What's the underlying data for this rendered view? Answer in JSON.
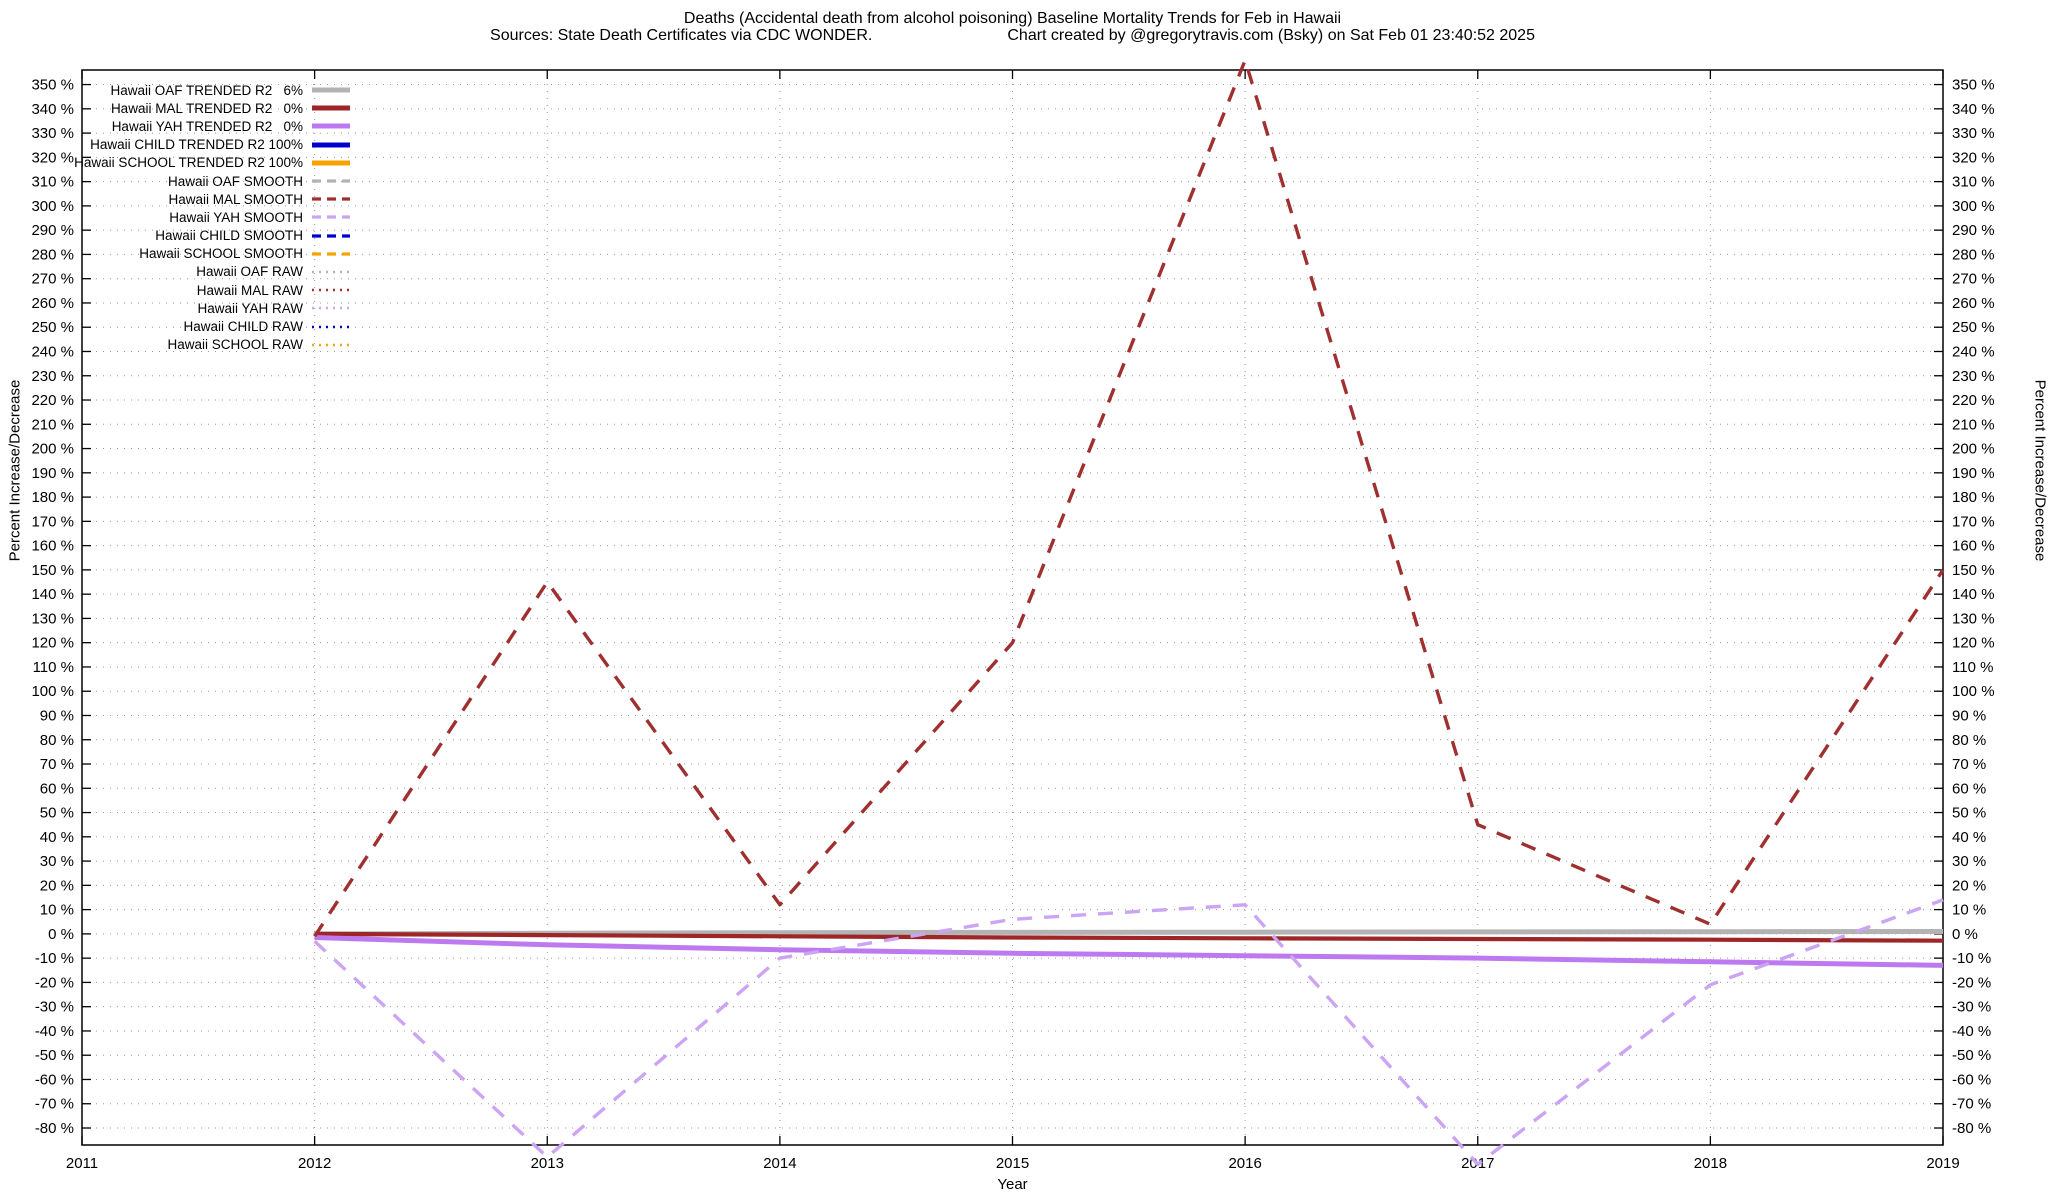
{
  "title": "Deaths (Accidental death from alcohol poisoning)  Baseline Mortality Trends for Feb in Hawaii",
  "subtitle": {
    "sources": "Sources: State Death Certificates via CDC WONDER.",
    "credit": "Chart created by @gregorytravis.com (Bsky) on Sat Feb 01 23:40:52 2025"
  },
  "colors": {
    "gray": "#b3b3b3",
    "darkred_solid": "#9e2626",
    "darkred_dash": "#a03030",
    "purple_solid": "#bd7af0",
    "purple_dash": "#cba4f4",
    "blue": "#0000cd",
    "orange": "#f5a300",
    "grid": "#999999",
    "border": "#000000"
  },
  "legend": [
    {
      "label": "Hawaii OAF TRENDED R2   6%",
      "style": "solid",
      "color": "gray"
    },
    {
      "label": "Hawaii MAL TRENDED R2   0%",
      "style": "solid",
      "color": "darkred_solid"
    },
    {
      "label": "Hawaii YAH TRENDED R2   0%",
      "style": "solid",
      "color": "purple_solid"
    },
    {
      "label": "Hawaii CHILD TRENDED R2 100%",
      "style": "solid",
      "color": "blue"
    },
    {
      "label": "Hawaii SCHOOL TRENDED R2 100%",
      "style": "solid",
      "color": "orange"
    },
    {
      "label": "Hawaii OAF SMOOTH",
      "style": "dashed",
      "color": "gray"
    },
    {
      "label": "Hawaii MAL SMOOTH",
      "style": "dashed",
      "color": "darkred_dash"
    },
    {
      "label": "Hawaii YAH SMOOTH",
      "style": "dashed",
      "color": "purple_dash"
    },
    {
      "label": "Hawaii CHILD SMOOTH",
      "style": "dashed",
      "color": "blue"
    },
    {
      "label": "Hawaii SCHOOL SMOOTH",
      "style": "dashed",
      "color": "orange"
    },
    {
      "label": "Hawaii OAF RAW",
      "style": "dotted",
      "color": "gray"
    },
    {
      "label": "Hawaii MAL RAW",
      "style": "dotted",
      "color": "darkred_dash"
    },
    {
      "label": "Hawaii YAH RAW",
      "style": "dotted",
      "color": "purple_dash"
    },
    {
      "label": "Hawaii CHILD RAW",
      "style": "dotted",
      "color": "blue"
    },
    {
      "label": "Hawaii SCHOOL RAW",
      "style": "dotted",
      "color": "orange"
    }
  ],
  "chart_data": {
    "type": "line",
    "title": "Deaths (Accidental death from alcohol poisoning)  Baseline Mortality Trends for Feb in Hawaii",
    "xlabel": "Year",
    "ylabel_left": "Percent Increase/Decrease",
    "ylabel_right": "Percent Increase/Decrease",
    "x_range": [
      2011,
      2019
    ],
    "x_ticks": [
      2011,
      2012,
      2013,
      2014,
      2015,
      2016,
      2017,
      2018,
      2019
    ],
    "y_axis": {
      "min": -80,
      "max": 350,
      "step": 10,
      "suffix": " %"
    },
    "grid": true,
    "legend_position": "top-left",
    "series": [
      {
        "name": "Hawaii OAF TRENDED R2 6%",
        "id": "oaf-trended",
        "color": "gray",
        "style": "solid",
        "width": 5,
        "x": [
          2012,
          2013,
          2014,
          2015,
          2016,
          2017,
          2018,
          2019
        ],
        "values": [
          0,
          0.3,
          0.5,
          0.6,
          0.7,
          0.8,
          0.9,
          1
        ]
      },
      {
        "name": "Hawaii MAL TRENDED R2 0%",
        "id": "mal-trended",
        "color": "darkred_solid",
        "style": "solid",
        "width": 4.2,
        "x": [
          2012,
          2013,
          2014,
          2015,
          2016,
          2017,
          2018,
          2019
        ],
        "values": [
          0,
          -0.5,
          -1,
          -1.5,
          -1.8,
          -2.1,
          -2.4,
          -2.8
        ]
      },
      {
        "name": "Hawaii YAH TRENDED R2 0%",
        "id": "yah-trended",
        "color": "purple_solid",
        "style": "solid",
        "width": 5,
        "x": [
          2012,
          2013,
          2014,
          2015,
          2016,
          2017,
          2018,
          2019
        ],
        "values": [
          -1.5,
          -4.5,
          -6.5,
          -8,
          -9,
          -10,
          -11.5,
          -13
        ]
      },
      {
        "name": "Hawaii CHILD TRENDED R2 100%",
        "id": "child-trended",
        "color": "blue",
        "style": "solid",
        "width": 4,
        "x": null,
        "values": null
      },
      {
        "name": "Hawaii SCHOOL TRENDED R2 100%",
        "id": "school-trended",
        "color": "orange",
        "style": "solid",
        "width": 4,
        "x": null,
        "values": null
      },
      {
        "name": "Hawaii OAF SMOOTH",
        "id": "oaf-smooth",
        "color": "gray",
        "style": "dashed",
        "width": 3.2,
        "x": null,
        "values": null
      },
      {
        "name": "Hawaii MAL SMOOTH",
        "id": "mal-smooth",
        "color": "darkred_dash",
        "style": "dashed",
        "width": 3.4,
        "x": [
          2012,
          2013,
          2014,
          2015,
          2016,
          2017,
          2018,
          2019
        ],
        "values": [
          -1,
          145,
          12,
          120,
          360,
          45,
          4,
          150
        ]
      },
      {
        "name": "Hawaii YAH SMOOTH",
        "id": "yah-smooth",
        "color": "purple_dash",
        "style": "dashed",
        "width": 3.4,
        "x": [
          2012,
          2013,
          2014,
          2015,
          2016,
          2017,
          2018,
          2019
        ],
        "values": [
          -3,
          -92,
          -10,
          6,
          12,
          -95,
          -21,
          14
        ]
      },
      {
        "name": "Hawaii CHILD SMOOTH",
        "id": "child-smooth",
        "color": "blue",
        "style": "dashed",
        "width": 3.2,
        "x": null,
        "values": null
      },
      {
        "name": "Hawaii SCHOOL SMOOTH",
        "id": "school-smooth",
        "color": "orange",
        "style": "dashed",
        "width": 3.2,
        "x": null,
        "values": null
      },
      {
        "name": "Hawaii OAF RAW",
        "id": "oaf-raw",
        "color": "gray",
        "style": "dotted",
        "width": 2.4,
        "x": null,
        "values": null
      },
      {
        "name": "Hawaii MAL RAW",
        "id": "mal-raw",
        "color": "darkred_dash",
        "style": "dotted",
        "width": 2.4,
        "x": null,
        "values": null
      },
      {
        "name": "Hawaii YAH RAW",
        "id": "yah-raw",
        "color": "purple_dash",
        "style": "dotted",
        "width": 2.4,
        "x": null,
        "values": null
      },
      {
        "name": "Hawaii CHILD RAW",
        "id": "child-raw",
        "color": "blue",
        "style": "dotted",
        "width": 2.4,
        "x": null,
        "values": null
      },
      {
        "name": "Hawaii SCHOOL RAW",
        "id": "school-raw",
        "color": "orange",
        "style": "dotted",
        "width": 2.4,
        "x": null,
        "values": null
      }
    ]
  }
}
